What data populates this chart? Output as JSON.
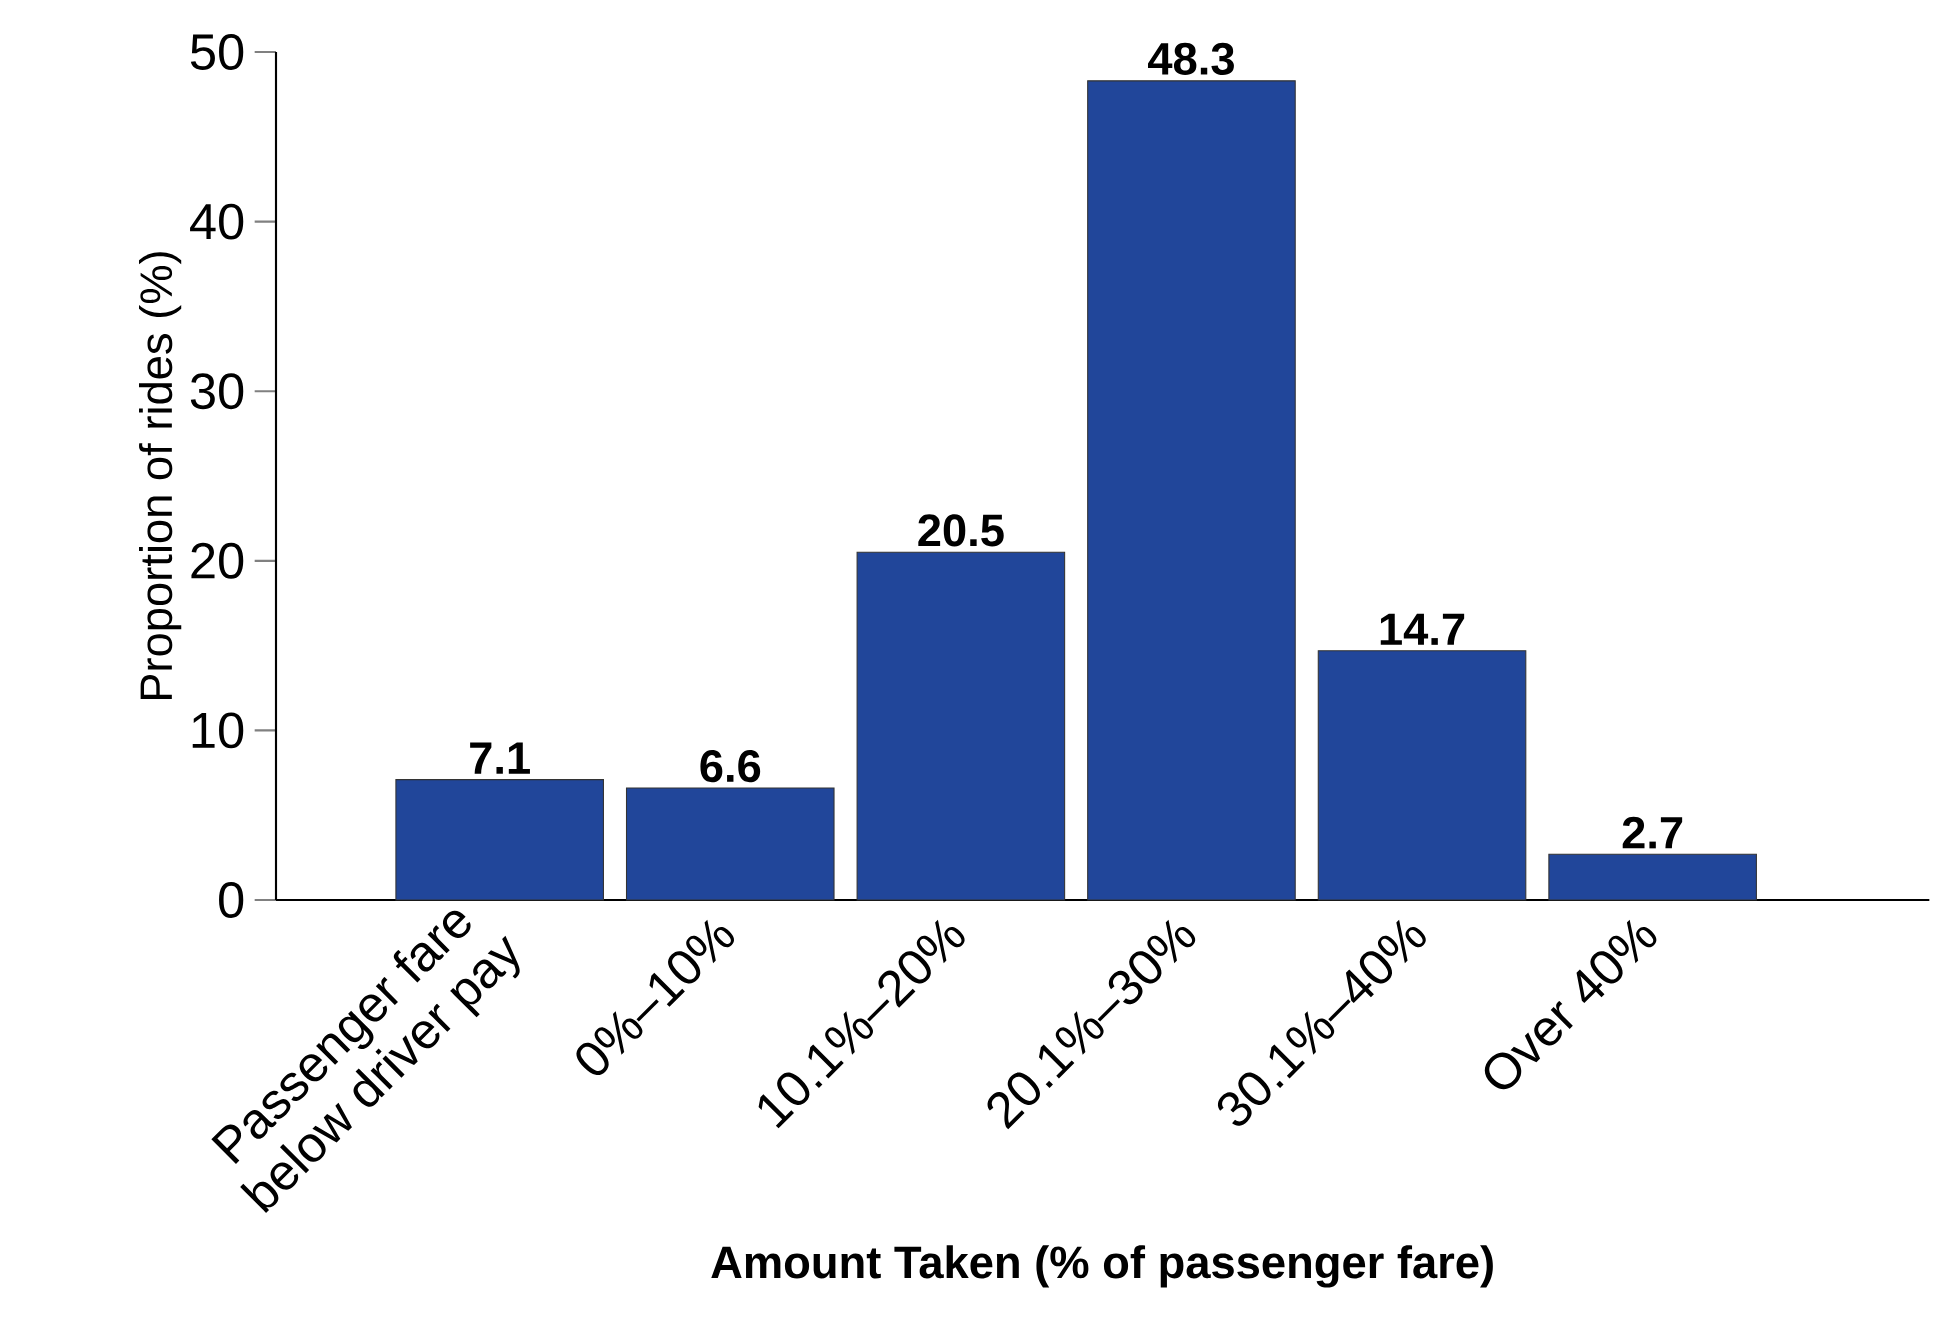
{
  "chart_data": {
    "type": "bar",
    "xlabel": "Amount Taken (% of passenger fare)",
    "ylabel": "Proportion of rides (%)",
    "categories": [
      "Passenger fare below driver pay",
      "0%–10%",
      "10.1%–20%",
      "20.1%–30%",
      "30.1%–40%",
      "Over 40%"
    ],
    "values": [
      7.1,
      6.6,
      20.5,
      48.3,
      14.7,
      2.7
    ],
    "color": "#21469a",
    "ylim": [
      0,
      50
    ],
    "yticks": [
      0,
      10,
      20,
      30,
      40,
      50
    ],
    "data_labels": true,
    "grid": false
  }
}
